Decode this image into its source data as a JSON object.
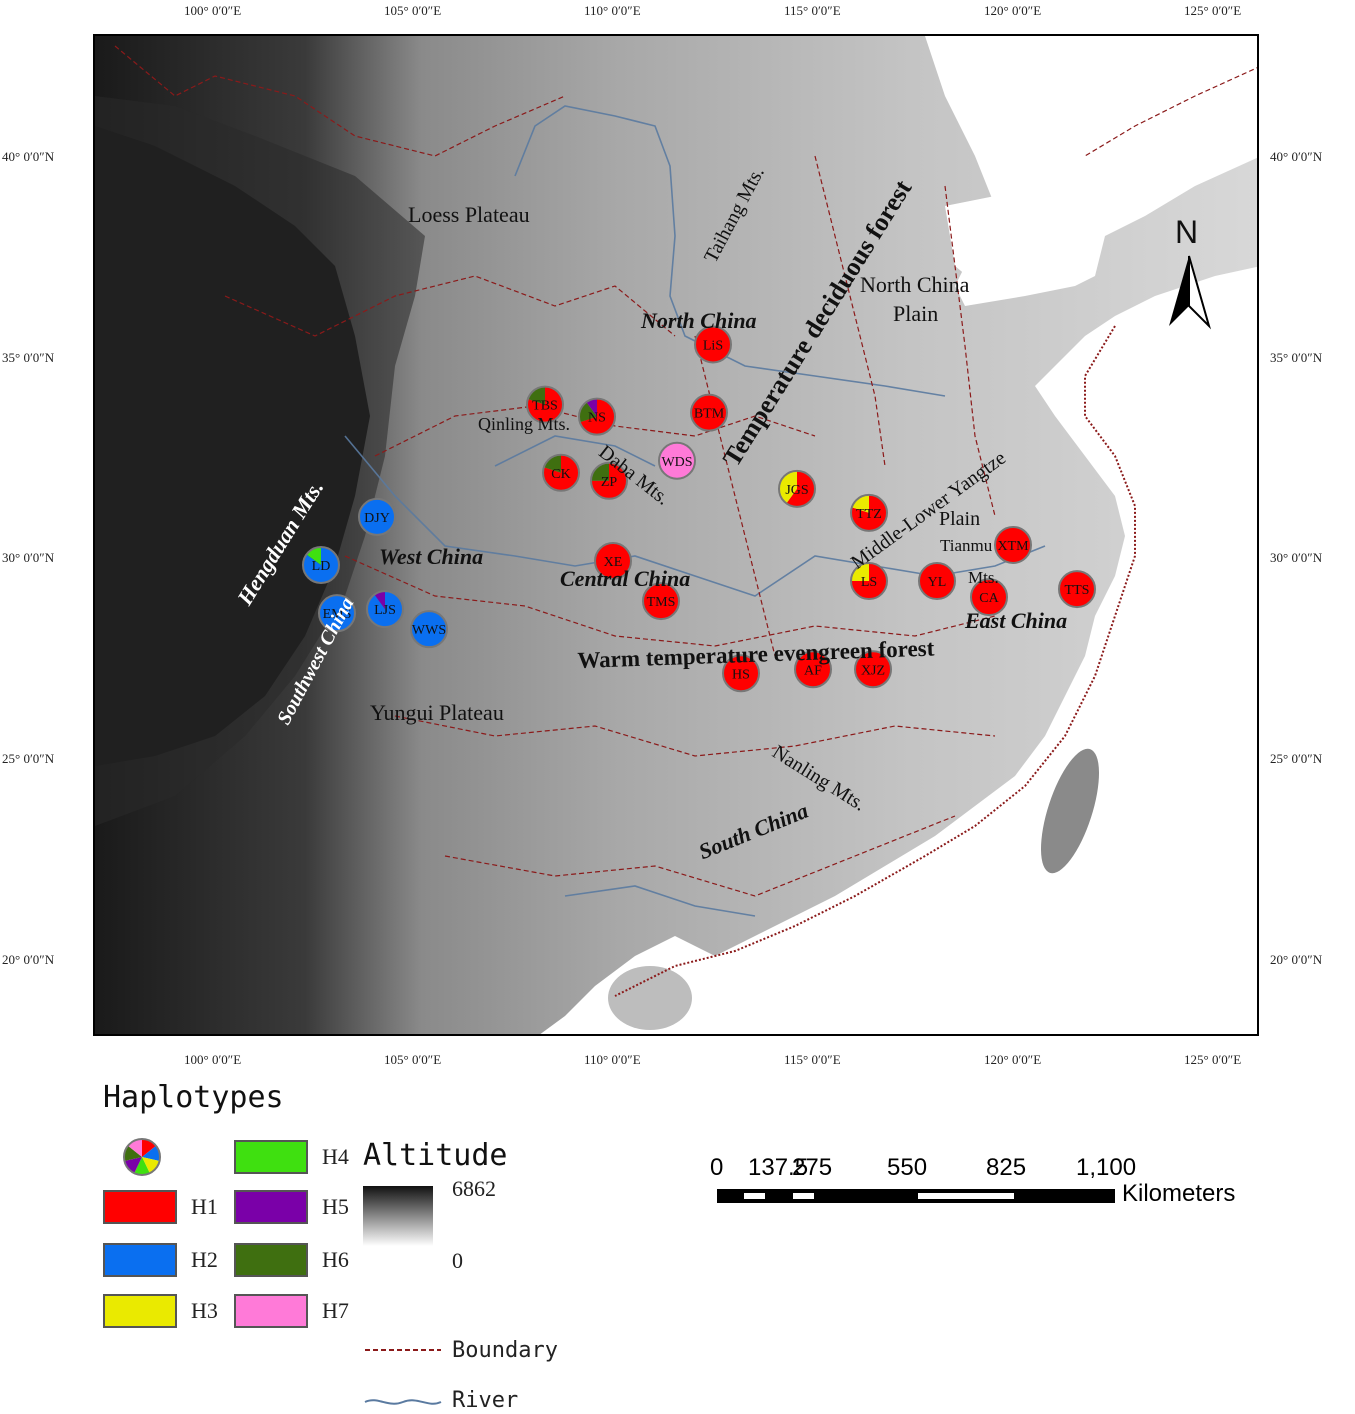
{
  "map": {
    "lon_ticks": [
      "100° 0′0″E",
      "105° 0′0″E",
      "110° 0′0″E",
      "115° 0′0″E",
      "120° 0′0″E",
      "125° 0′0″E"
    ],
    "lat_ticks": [
      "40° 0′0″N",
      "35° 0′0″N",
      "30° 0′0″N",
      "25° 0′0″N",
      "20° 0′0″N"
    ],
    "regions": {
      "loess": "Loess Plateau",
      "taihang": "Taihang Mts.",
      "temperate": "Temperature deciduous forest",
      "ncplain1": "North China",
      "ncplain2": "Plain",
      "northchina": "North China",
      "qinling": "Qinling Mts.",
      "daba": "Daba Mts.",
      "hengduan": "Hengduan Mts.",
      "westchina": "West China",
      "southwest": "Southwest China",
      "middlelower": "Middle-Lower Yangtze",
      "plain": "Plain",
      "tianmu1": "Tianmu",
      "tianmu2": "Mts.",
      "centralchina": "Central China",
      "eastchina": "East China",
      "warm": "Warm temperature evengreen forest",
      "yungui": "Yungui Plateau",
      "nanling": "Nanling Mts.",
      "southchina": "South China"
    },
    "north_arrow": "N",
    "populations": [
      {
        "id": "LiS",
        "lon": 112.0,
        "lat": 35.4,
        "haplotypes": [
          {
            "h": "H1",
            "f": 1.0
          }
        ]
      },
      {
        "id": "TBS",
        "lon": 107.8,
        "lat": 33.9,
        "haplotypes": [
          {
            "h": "H1",
            "f": 0.8
          },
          {
            "h": "H6",
            "f": 0.2
          }
        ]
      },
      {
        "id": "NS",
        "lon": 109.1,
        "lat": 33.6,
        "haplotypes": [
          {
            "h": "H1",
            "f": 0.7
          },
          {
            "h": "H6",
            "f": 0.2
          },
          {
            "h": "H5",
            "f": 0.1
          }
        ]
      },
      {
        "id": "BTM",
        "lon": 111.9,
        "lat": 33.7,
        "haplotypes": [
          {
            "h": "H1",
            "f": 1.0
          }
        ]
      },
      {
        "id": "WDS",
        "lon": 111.1,
        "lat": 32.5,
        "haplotypes": [
          {
            "h": "H7",
            "f": 1.0
          }
        ]
      },
      {
        "id": "CK",
        "lon": 108.2,
        "lat": 32.2,
        "haplotypes": [
          {
            "h": "H1",
            "f": 0.8
          },
          {
            "h": "H6",
            "f": 0.2
          }
        ]
      },
      {
        "id": "ZP",
        "lon": 109.4,
        "lat": 32.0,
        "haplotypes": [
          {
            "h": "H1",
            "f": 0.75
          },
          {
            "h": "H6",
            "f": 0.25
          }
        ]
      },
      {
        "id": "JGS",
        "lon": 114.1,
        "lat": 31.8,
        "haplotypes": [
          {
            "h": "H1",
            "f": 0.6
          },
          {
            "h": "H3",
            "f": 0.4
          }
        ]
      },
      {
        "id": "TTZ",
        "lon": 115.9,
        "lat": 31.2,
        "haplotypes": [
          {
            "h": "H1",
            "f": 0.8
          },
          {
            "h": "H3",
            "f": 0.2
          }
        ]
      },
      {
        "id": "DJY",
        "lon": 103.6,
        "lat": 31.1,
        "haplotypes": [
          {
            "h": "H2",
            "f": 1.0
          }
        ]
      },
      {
        "id": "LD",
        "lon": 102.2,
        "lat": 29.9,
        "haplotypes": [
          {
            "h": "H2",
            "f": 0.85
          },
          {
            "h": "H4",
            "f": 0.15
          }
        ]
      },
      {
        "id": "EMS",
        "lon": 102.6,
        "lat": 28.7,
        "haplotypes": [
          {
            "h": "H2",
            "f": 1.0
          }
        ]
      },
      {
        "id": "LJS",
        "lon": 103.8,
        "lat": 28.8,
        "haplotypes": [
          {
            "h": "H2",
            "f": 0.9
          },
          {
            "h": "H5",
            "f": 0.1
          }
        ]
      },
      {
        "id": "WWS",
        "lon": 104.9,
        "lat": 28.3,
        "haplotypes": [
          {
            "h": "H2",
            "f": 1.0
          }
        ]
      },
      {
        "id": "XE",
        "lon": 109.5,
        "lat": 30.0,
        "haplotypes": [
          {
            "h": "H1",
            "f": 1.0
          }
        ]
      },
      {
        "id": "TMS",
        "lon": 110.7,
        "lat": 29.0,
        "haplotypes": [
          {
            "h": "H1",
            "f": 1.0
          }
        ]
      },
      {
        "id": "LS",
        "lon": 115.9,
        "lat": 29.5,
        "haplotypes": [
          {
            "h": "H1",
            "f": 0.75
          },
          {
            "h": "H3",
            "f": 0.25
          }
        ]
      },
      {
        "id": "YL",
        "lon": 117.6,
        "lat": 29.5,
        "haplotypes": [
          {
            "h": "H1",
            "f": 1.0
          }
        ]
      },
      {
        "id": "XTM",
        "lon": 119.5,
        "lat": 30.4,
        "haplotypes": [
          {
            "h": "H1",
            "f": 1.0
          }
        ]
      },
      {
        "id": "CA",
        "lon": 118.9,
        "lat": 29.1,
        "haplotypes": [
          {
            "h": "H1",
            "f": 1.0
          }
        ]
      },
      {
        "id": "TTS",
        "lon": 121.1,
        "lat": 29.3,
        "haplotypes": [
          {
            "h": "H1",
            "f": 1.0
          }
        ]
      },
      {
        "id": "HS",
        "lon": 112.7,
        "lat": 27.2,
        "haplotypes": [
          {
            "h": "H1",
            "f": 1.0
          }
        ]
      },
      {
        "id": "AF",
        "lon": 114.5,
        "lat": 27.3,
        "haplotypes": [
          {
            "h": "H1",
            "f": 1.0
          }
        ]
      },
      {
        "id": "XJZ",
        "lon": 116.0,
        "lat": 27.3,
        "haplotypes": [
          {
            "h": "H1",
            "f": 1.0
          }
        ]
      }
    ]
  },
  "legend": {
    "title": "Haplotypes",
    "haplotypes": [
      {
        "name": "H1",
        "color": "#ff0000"
      },
      {
        "name": "H2",
        "color": "#0a6ff0"
      },
      {
        "name": "H3",
        "color": "#eaea00"
      },
      {
        "name": "H4",
        "color": "#3fe010"
      },
      {
        "name": "H5",
        "color": "#7a00a8"
      },
      {
        "name": "H6",
        "color": "#3f6f10"
      },
      {
        "name": "H7",
        "color": "#ff7ad8"
      }
    ],
    "altitude_title": "Altitude",
    "altitude_max": "6862",
    "altitude_min": "0",
    "boundary": "Boundary",
    "river": "River"
  },
  "scale_bar": {
    "ticks": [
      "0",
      "137.5",
      "275",
      "550",
      "825",
      "1,100"
    ],
    "unit": "Kilometers"
  }
}
